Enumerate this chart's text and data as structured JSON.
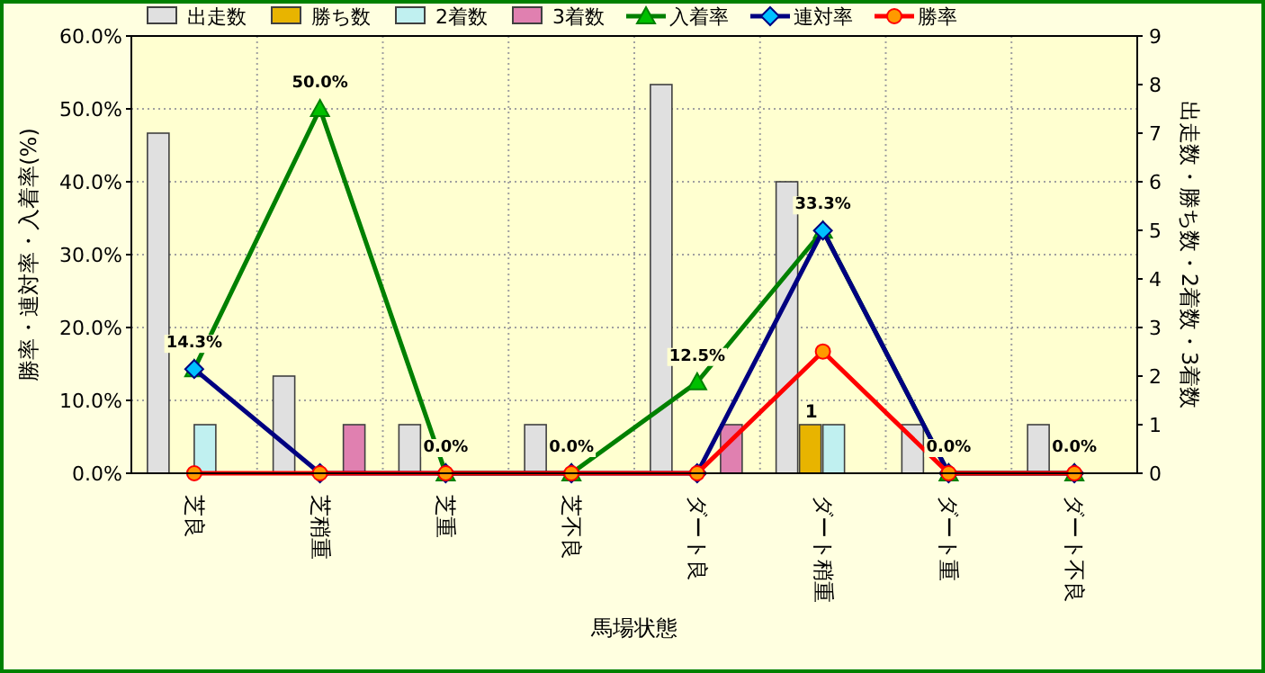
{
  "chart_data": {
    "type": "bar",
    "xlabel": "馬場状態",
    "ylabel": "勝率・連対率・入着率(%)",
    "y2label": "出走数・勝ち数・2着数・3着数",
    "categories": [
      "芝良",
      "芝稍重",
      "芝重",
      "芝不良",
      "ダート良",
      "ダート稍重",
      "ダート重",
      "ダート不良"
    ],
    "ylim": [
      0,
      60
    ],
    "yticks": [
      {
        "value": 0,
        "label": "0.0%"
      },
      {
        "value": 10,
        "label": "10.0%"
      },
      {
        "value": 20,
        "label": "20.0%"
      },
      {
        "value": 30,
        "label": "30.0%"
      },
      {
        "value": 40,
        "label": "40.0%"
      },
      {
        "value": 50,
        "label": "50.0%"
      },
      {
        "value": 60,
        "label": "60.0%"
      }
    ],
    "y2lim": [
      0,
      9
    ],
    "y2ticks": [
      0,
      1,
      2,
      3,
      4,
      5,
      6,
      7,
      8,
      9
    ],
    "grid": true,
    "legend": "top",
    "series": [
      {
        "name": "出走数",
        "axis": "y2",
        "color": "#e0e0e0",
        "values": [
          7,
          2,
          1,
          1,
          8,
          6,
          1,
          1
        ]
      },
      {
        "name": "勝ち数",
        "axis": "y2",
        "color": "#e8b400",
        "values": [
          0,
          0,
          0,
          0,
          0,
          1,
          0,
          0
        ],
        "value_labels": [
          null,
          null,
          null,
          null,
          null,
          "1",
          null,
          null
        ]
      },
      {
        "name": "2着数",
        "axis": "y2",
        "color": "#c0f0f0",
        "values": [
          1,
          0,
          0,
          0,
          0,
          1,
          0,
          0
        ]
      },
      {
        "name": "3着数",
        "axis": "y2",
        "color": "#e080b0",
        "values": [
          0,
          1,
          0,
          0,
          1,
          0,
          0,
          0
        ]
      },
      {
        "name": "入着率",
        "type": "line",
        "color": "#008000",
        "marker": "triangle",
        "values": [
          14.3,
          50.0,
          0.0,
          0.0,
          12.5,
          33.3,
          0.0,
          0.0
        ],
        "value_labels": [
          "14.3%",
          "50.0%",
          "0.0%",
          "0.0%",
          "12.5%",
          "33.3%",
          "0.0%",
          "0.0%"
        ]
      },
      {
        "name": "連対率",
        "type": "line",
        "color": "#000080",
        "marker": "diamond",
        "values": [
          14.3,
          0.0,
          0.0,
          0.0,
          0.0,
          33.3,
          0.0,
          0.0
        ]
      },
      {
        "name": "勝率",
        "type": "line",
        "color": "#ff0000",
        "marker": "circle",
        "values": [
          0.0,
          0.0,
          0.0,
          0.0,
          0.0,
          16.7,
          0.0,
          0.0
        ]
      }
    ]
  }
}
